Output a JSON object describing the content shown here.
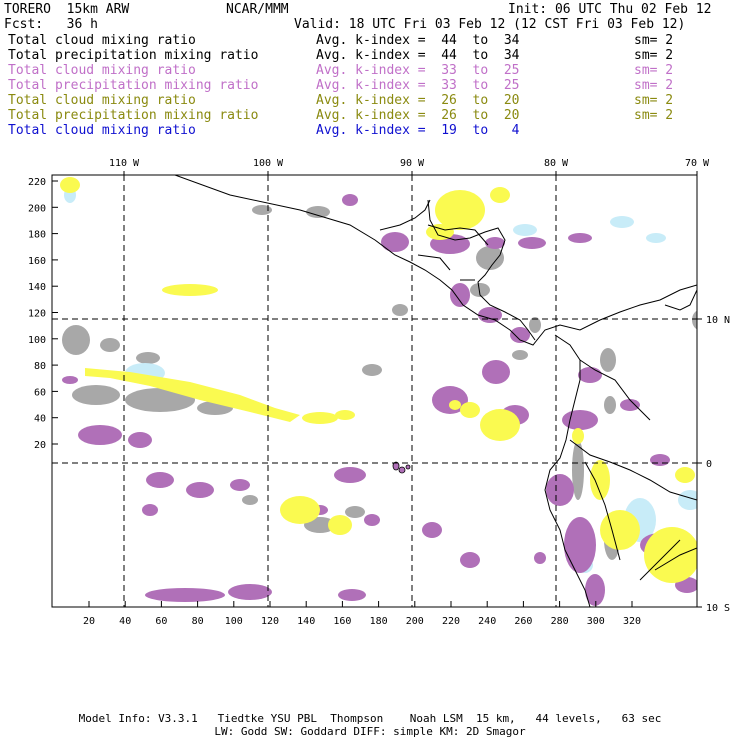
{
  "header": {
    "model": "TORERO  15km ARW",
    "org": "NCAR/MMM",
    "init": "Init: 06 UTC Thu 02 Feb 12",
    "fcst": "Fcst:   36 h",
    "valid": "Valid: 18 UTC Fri 03 Feb 12 (12 CST Fri 03 Feb 12)"
  },
  "legend": [
    {
      "name": "Total cloud mixing ratio",
      "kindex": "Avg. k-index =  44  to  34",
      "sm": "sm= 2",
      "color": "#000000"
    },
    {
      "name": "Total precipitation mixing ratio",
      "kindex": "Avg. k-index =  44  to  34",
      "sm": "sm= 2",
      "color": "#000000"
    },
    {
      "name": "Total cloud mixing ratio",
      "kindex": "Avg. k-index =  33  to  25",
      "sm": "sm= 2",
      "color": "#c070c8"
    },
    {
      "name": "Total precipitation mixing ratio",
      "kindex": "Avg. k-index =  33  to  25",
      "sm": "sm= 2",
      "color": "#c070c8"
    },
    {
      "name": "Total cloud mixing ratio",
      "kindex": "Avg. k-index =  26  to  20",
      "sm": "sm= 2",
      "color": "#8a8a10"
    },
    {
      "name": "Total precipitation mixing ratio",
      "kindex": "Avg. k-index =  26  to  20",
      "sm": "sm= 2",
      "color": "#8a8a10"
    },
    {
      "name": "Total cloud mixing ratio",
      "kindex": "Avg. k-index =  19  to   4",
      "sm": "",
      "color": "#1010d0"
    }
  ],
  "map": {
    "top_lon_labels": [
      "110 W",
      "100 W",
      "90 W",
      "80 W",
      "70 W"
    ],
    "right_lat_labels": [
      "10 N",
      "0",
      "10 S"
    ],
    "left_ticks": [
      "220",
      "200",
      "180",
      "160",
      "140",
      "120",
      "100",
      "80",
      "60",
      "40",
      "20"
    ],
    "bottom_ticks": [
      "20",
      "40",
      "60",
      "80",
      "100",
      "120",
      "140",
      "160",
      "180",
      "200",
      "220",
      "240",
      "260",
      "280",
      "300",
      "320"
    ],
    "colors": {
      "gray": "#a8a8a8",
      "purple": "#b070b8",
      "yellow": "#fafa50",
      "lightblue": "#c8ecf8"
    }
  },
  "footer": {
    "line1": "Model Info: V3.3.1   Tiedtke YSU PBL  Thompson    Noah LSM  15 km,   44 levels,   63 sec",
    "line2": "LW: Godd SW: Goddard DIFF: simple KM: 2D Smagor"
  }
}
